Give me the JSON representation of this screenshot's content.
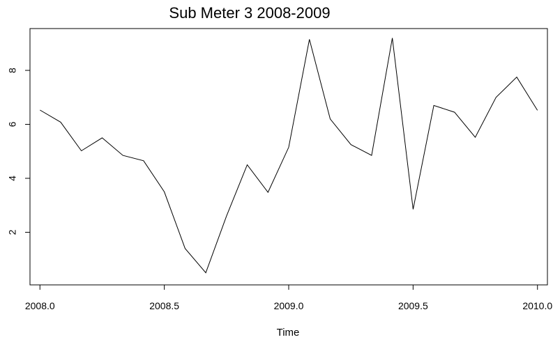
{
  "chart_data": {
    "type": "line",
    "title": "Sub Meter 3 2008-2009",
    "xlabel": "Time",
    "ylabel": "",
    "xlim": [
      2007.96,
      2010.04
    ],
    "ylim": [
      0.05,
      9.55
    ],
    "grid": false,
    "legend": "none",
    "line_color": "#000000",
    "x_ticks": [
      2008.0,
      2008.5,
      2009.0,
      2009.5,
      2010.0
    ],
    "x_tick_labels": [
      "2008.0",
      "2008.5",
      "2009.0",
      "2009.5",
      "2010.0"
    ],
    "y_ticks": [
      2,
      4,
      6,
      8
    ],
    "y_tick_labels": [
      "2",
      "4",
      "6",
      "8"
    ],
    "series": [
      {
        "x": [
          2008.0,
          2008.0833,
          2008.1667,
          2008.25,
          2008.3333,
          2008.4167,
          2008.5,
          2008.5833,
          2008.6667,
          2008.75,
          2008.8333,
          2008.9167,
          2009.0,
          2009.0833,
          2009.1667,
          2009.25,
          2009.3333,
          2009.4167,
          2009.5,
          2009.5833,
          2009.6667,
          2009.75,
          2009.8333,
          2009.9167,
          2010.0
        ],
        "values": [
          6.53,
          6.08,
          5.02,
          5.5,
          4.85,
          4.65,
          3.5,
          1.4,
          0.5,
          2.6,
          4.5,
          3.48,
          5.15,
          9.15,
          6.2,
          5.25,
          4.85,
          9.2,
          2.85,
          6.7,
          6.45,
          5.52,
          7.0,
          7.75,
          6.52
        ]
      }
    ]
  }
}
